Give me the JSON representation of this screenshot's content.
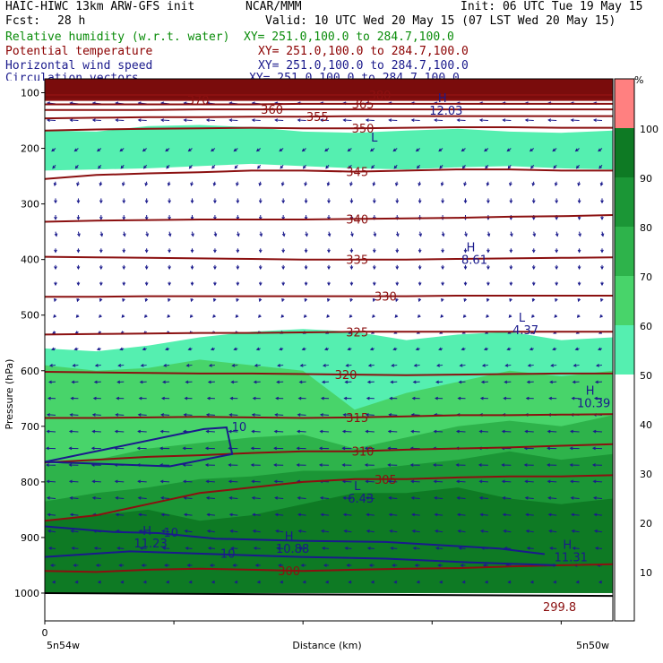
{
  "header": {
    "title_left": "HAIC-HIWC 13km ARW-GFS init",
    "org": "NCAR/MMM",
    "init": "Init: 06 UTC Tue 19 May 15",
    "fcst_label": "Fcst:",
    "fcst_value": "28 h",
    "valid": "Valid: 10 UTC Wed 20 May 15 (07 LST Wed 20 May 15)",
    "fields": [
      {
        "name": "Relative humidity (w.r.t. water)",
        "xy": "XY= 251.0,100.0 to 284.7,100.0",
        "color": "#0a8c0a"
      },
      {
        "name": "Potential temperature",
        "xy": "XY= 251.0,100.0 to 284.7,100.0",
        "color": "#8b0000"
      },
      {
        "name": "Horizontal wind speed",
        "xy": "XY= 251.0,100.0 to 284.7,100.0",
        "color": "#1a1a8c"
      },
      {
        "name": "Circulation vectors",
        "xy": "XY= 251.0,100.0 to 284.7,100.0",
        "color": "#1a1a8c"
      }
    ]
  },
  "chart_data": {
    "type": "heatmap",
    "ylabel": "Pressure (hPa)",
    "xlabel": "Distance (km)",
    "x_origin_label": "0",
    "x_left_label": "5n54w",
    "x_right_label": "5n50w",
    "yticks": [
      100,
      200,
      300,
      400,
      500,
      600,
      700,
      800,
      900,
      1000
    ],
    "ylim": [
      1050,
      75
    ],
    "colorbar": {
      "unit": "%",
      "ticks": [
        10,
        20,
        30,
        40,
        50,
        60,
        70,
        80,
        90,
        100
      ],
      "levels": [
        50,
        60,
        70,
        80,
        90,
        100
      ],
      "colors": [
        "#55efb0",
        "#48d46a",
        "#2eb34b",
        "#1b9636",
        "#0e7a24",
        "#ff8080"
      ]
    },
    "rh_layers": [
      {
        "level": "50-60",
        "color": "#55efb0",
        "bottom_p": [
          240,
          238,
          236,
          232,
          228,
          232,
          236,
          238,
          234,
          232,
          236,
          238
        ],
        "top_p": [
          168,
          170,
          160,
          158,
          162,
          170,
          172,
          168,
          165,
          170,
          172,
          168
        ]
      },
      {
        "level": "50-60 lower",
        "color": "#55efb0",
        "bottom_p": [
          1000,
          1000,
          1000,
          1000,
          1000,
          1000,
          1000,
          1000,
          1000,
          1000,
          1000,
          1000
        ],
        "top_p": [
          560,
          565,
          555,
          540,
          530,
          525,
          530,
          545,
          535,
          530,
          545,
          540
        ]
      },
      {
        "level": "60-70",
        "color": "#48d46a",
        "bottom_p": [
          1000,
          1000,
          1000,
          1000,
          1000,
          1000,
          1000,
          1000,
          1000,
          1000,
          1000,
          1000
        ],
        "top_p": [
          590,
          600,
          595,
          580,
          590,
          600,
          670,
          640,
          620,
          600,
          610,
          600
        ]
      },
      {
        "level": "70-80",
        "color": "#2eb34b",
        "bottom_p": [
          1000,
          1000,
          1000,
          1000,
          1000,
          1000,
          1000,
          1000,
          1000,
          1000,
          1000,
          1000
        ],
        "top_p": [
          770,
          760,
          740,
          730,
          720,
          715,
          740,
          720,
          700,
          690,
          700,
          680
        ]
      },
      {
        "level": "80-90",
        "color": "#1b9636",
        "bottom_p": [
          1000,
          1000,
          1000,
          1000,
          1000,
          1000,
          1000,
          1000,
          1000,
          1000,
          1000,
          1000
        ],
        "top_p": [
          835,
          820,
          810,
          795,
          790,
          780,
          780,
          770,
          760,
          745,
          760,
          750
        ]
      },
      {
        "level": "90-100",
        "color": "#0e7a24",
        "bottom_p": [
          1000,
          1000,
          1000,
          1000,
          1000,
          1000,
          1000,
          1000,
          1000,
          1000,
          1000,
          1000
        ],
        "top_p": [
          870,
          860,
          850,
          870,
          860,
          840,
          820,
          820,
          810,
          830,
          840,
          830
        ]
      }
    ],
    "stratosphere_color": "#7a0c0c",
    "theta_contours": [
      {
        "label": "300",
        "p": [
          960,
          962,
          958,
          956,
          958,
          960,
          958,
          956,
          955,
          952,
          950,
          948
        ],
        "label_x_frac": 0.43
      },
      {
        "label": "305",
        "p": [
          870,
          860,
          840,
          820,
          810,
          800,
          795,
          795,
          792,
          790,
          790,
          788
        ],
        "label_x_frac": 0.6
      },
      {
        "label": "310",
        "p": [
          765,
          760,
          755,
          752,
          748,
          745,
          745,
          742,
          740,
          738,
          735,
          732
        ],
        "label_x_frac": 0.56
      },
      {
        "label": "315",
        "p": [
          685,
          685,
          684,
          683,
          684,
          685,
          684,
          682,
          680,
          680,
          679,
          678
        ],
        "label_x_frac": 0.55
      },
      {
        "label": "320",
        "p": [
          602,
          603,
          604,
          605,
          605,
          606,
          607,
          608,
          607,
          606,
          605,
          605
        ],
        "label_x_frac": 0.53
      },
      {
        "label": "325",
        "p": [
          535,
          534,
          533,
          532,
          532,
          531,
          530,
          530,
          530,
          530,
          530,
          530
        ],
        "label_x_frac": 0.55
      },
      {
        "label": "330",
        "p": [
          467,
          467,
          466,
          466,
          466,
          466,
          466,
          466,
          465,
          465,
          465,
          465
        ],
        "label_x_frac": 0.6
      },
      {
        "label": "335",
        "p": [
          395,
          396,
          397,
          398,
          399,
          400,
          400,
          400,
          399,
          398,
          397,
          396
        ],
        "label_x_frac": 0.55
      },
      {
        "label": "340",
        "p": [
          332,
          330,
          329,
          328,
          328,
          328,
          327,
          326,
          325,
          323,
          322,
          320
        ],
        "label_x_frac": 0.55
      },
      {
        "label": "345",
        "p": [
          255,
          248,
          245,
          243,
          240,
          240,
          242,
          240,
          238,
          238,
          240,
          240
        ],
        "label_x_frac": 0.55
      },
      {
        "label": "350",
        "p": [
          168,
          166,
          165,
          164,
          163,
          164,
          164,
          163,
          162,
          162,
          163,
          163
        ],
        "label_x_frac": 0.56
      },
      {
        "label": "355",
        "p": [
          146,
          145,
          144,
          144,
          143,
          143,
          142,
          142,
          142,
          142,
          142,
          142
        ],
        "label_x_frac": 0.48
      },
      {
        "label": "360",
        "p": [
          131,
          131,
          131,
          130,
          130,
          130,
          130,
          130,
          130,
          130,
          130,
          130
        ],
        "label_x_frac": 0.4
      },
      {
        "label": "365",
        "p": [
          121,
          121,
          121,
          121,
          121,
          120,
          120,
          120,
          120,
          120,
          120,
          120
        ],
        "label_x_frac": 0.56
      },
      {
        "label": "370",
        "p": [
          113,
          113,
          113,
          113,
          113,
          113,
          113,
          113,
          113,
          113,
          113,
          113
        ],
        "label_x_frac": 0.27
      },
      {
        "label": "380",
        "p": [
          104,
          104,
          104,
          104,
          104,
          104,
          104,
          104,
          104,
          104,
          104,
          104
        ],
        "label_x_frac": 0.59
      }
    ],
    "wind_contours": [
      {
        "label": "10",
        "points": [
          [
            0.0,
            764
          ],
          [
            0.28,
            705
          ],
          [
            0.32,
            702
          ],
          [
            0.33,
            750
          ],
          [
            0.22,
            772
          ],
          [
            0.0,
            764
          ]
        ]
      },
      {
        "label": "10",
        "points": [
          [
            0.0,
            880
          ],
          [
            0.12,
            890
          ],
          [
            0.2,
            892
          ],
          [
            0.3,
            902
          ],
          [
            0.45,
            906
          ],
          [
            0.6,
            908
          ],
          [
            0.8,
            920
          ],
          [
            0.88,
            930
          ]
        ]
      },
      {
        "label": "10",
        "points": [
          [
            0.0,
            935
          ],
          [
            0.15,
            925
          ],
          [
            0.3,
            930
          ],
          [
            0.45,
            935
          ],
          [
            0.6,
            938
          ],
          [
            0.75,
            945
          ],
          [
            0.9,
            950
          ]
        ]
      }
    ],
    "extrema": [
      {
        "type": "H",
        "value": "12.03",
        "x_frac": 0.7,
        "p": 117
      },
      {
        "type": "L",
        "value": "",
        "x_frac": 0.58,
        "p": 188
      },
      {
        "type": "H",
        "value": "8.61",
        "x_frac": 0.75,
        "p": 385
      },
      {
        "type": "L",
        "value": "4.37",
        "x_frac": 0.84,
        "p": 512
      },
      {
        "type": "H",
        "value": "10.39",
        "x_frac": 0.96,
        "p": 643
      },
      {
        "type": "L",
        "value": "6.43",
        "x_frac": 0.55,
        "p": 815
      },
      {
        "type": "H",
        "value": "11.23",
        "x_frac": 0.18,
        "p": 895
      },
      {
        "type": "H",
        "value": "10.88",
        "x_frac": 0.43,
        "p": 905
      },
      {
        "type": "H",
        "value": "11.31",
        "x_frac": 0.92,
        "p": 920
      },
      {
        "type": "",
        "value": "299.8",
        "x_frac": 0.9,
        "p": 1010
      }
    ],
    "vectors": {
      "rows_p": [
        120,
        150,
        200,
        230,
        260,
        290,
        320,
        350,
        380,
        410,
        440,
        470,
        500,
        530,
        560,
        590,
        620,
        650,
        680,
        710,
        740,
        770,
        800,
        830,
        860,
        890,
        920,
        950,
        980
      ],
      "cols": 25,
      "u_by_row": [
        -0.9,
        -0.9,
        -0.4,
        -0.3,
        -0.1,
        0.0,
        0.0,
        0.1,
        0.0,
        0.0,
        0.0,
        -0.1,
        -0.2,
        -0.3,
        -0.4,
        -0.6,
        -0.7,
        -0.8,
        -0.9,
        -0.95,
        -1.0,
        -1.0,
        -0.95,
        -0.9,
        -0.85,
        -0.8,
        -0.7,
        -0.5,
        -0.3
      ],
      "v_by_row": [
        0.15,
        0.1,
        -0.5,
        -0.6,
        -0.7,
        -0.8,
        -0.8,
        -0.8,
        -0.7,
        -0.7,
        -0.6,
        -0.5,
        -0.4,
        -0.3,
        -0.2,
        -0.1,
        -0.05,
        0.05,
        0.1,
        0.1,
        0.05,
        0.05,
        0.1,
        0.15,
        0.15,
        0.2,
        0.1,
        0.0,
        -0.05
      ]
    }
  }
}
